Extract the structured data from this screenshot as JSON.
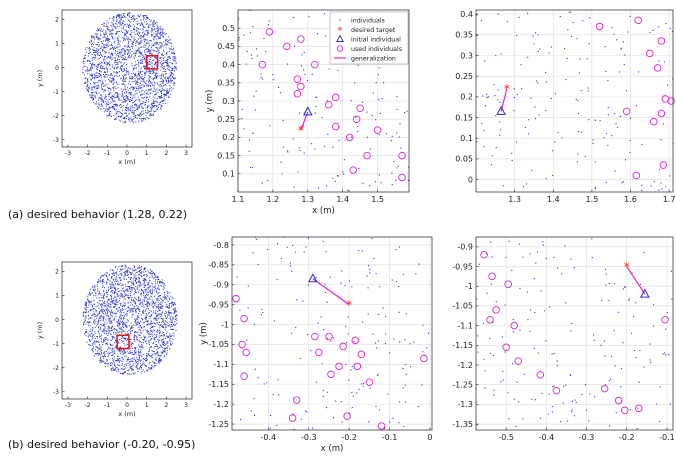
{
  "captions": {
    "row_a": "(a) desired behavior (1.28, 0.22)",
    "row_b": "(b) desired behavior (-0.20, -0.95)"
  },
  "legend": {
    "individuals": "individuals",
    "desired_target": "desired target",
    "initial_individual": "initial individual",
    "used_individuals": "used individuals",
    "generalization": "generalization"
  },
  "colors": {
    "individuals": "#2a32c8",
    "target": "#ff2020",
    "initial": "#2a2acc",
    "used": "#e020d8",
    "generalization": "#e020d8",
    "highlight_box": "#e01818",
    "grid": "#dcdcdc"
  },
  "chart_data": [
    {
      "type": "scatter",
      "panel": "a-overview",
      "xlabel": "x (m)",
      "ylabel": "y (m)",
      "xlim": [
        -3.3,
        3.3
      ],
      "ylim": [
        -3.3,
        2.4
      ],
      "xticks": [
        -3,
        -2,
        -1,
        0,
        1,
        2,
        3
      ],
      "yticks": [
        -3,
        -2,
        -1,
        0,
        1,
        2
      ],
      "grid": false,
      "cloud": {
        "center": [
          0.15,
          0.0
        ],
        "radii": [
          2.4,
          2.3
        ],
        "count": 2200
      },
      "box": [
        1.0,
        -0.05,
        1.55,
        0.5
      ]
    },
    {
      "type": "scatter",
      "panel": "a-zoom-left",
      "xlabel": "x (m)",
      "ylabel": "y (m)",
      "xlim": [
        1.1,
        1.59
      ],
      "ylim": [
        0.05,
        0.55
      ],
      "xticks": [
        1.1,
        1.2,
        1.3,
        1.4,
        1.5
      ],
      "yticks": [
        0.1,
        0.15,
        0.2,
        0.25,
        0.3,
        0.35,
        0.4,
        0.45,
        0.5
      ],
      "grid": true,
      "legend_placement": "top-right",
      "target": [
        1.28,
        0.22
      ],
      "initial": [
        1.3,
        0.27
      ],
      "used": [
        [
          1.19,
          0.49
        ],
        [
          1.28,
          0.47
        ],
        [
          1.24,
          0.45
        ],
        [
          1.17,
          0.4
        ],
        [
          1.32,
          0.4
        ],
        [
          1.27,
          0.36
        ],
        [
          1.28,
          0.34
        ],
        [
          1.27,
          0.32
        ],
        [
          1.38,
          0.31
        ],
        [
          1.36,
          0.29
        ],
        [
          1.45,
          0.28
        ],
        [
          1.44,
          0.25
        ],
        [
          1.38,
          0.23
        ],
        [
          1.42,
          0.2
        ],
        [
          1.5,
          0.22
        ],
        [
          1.47,
          0.15
        ],
        [
          1.57,
          0.15
        ],
        [
          1.43,
          0.11
        ],
        [
          1.57,
          0.09
        ]
      ]
    },
    {
      "type": "scatter",
      "panel": "a-zoom-right",
      "xlabel": "",
      "ylabel": "",
      "xlim": [
        1.2,
        1.71
      ],
      "ylim": [
        -0.03,
        0.41
      ],
      "xticks": [
        1.3,
        1.4,
        1.5,
        1.6,
        1.7
      ],
      "yticks": [
        0,
        0.05,
        0.1,
        0.15,
        0.2,
        0.25,
        0.3,
        0.35,
        0.4
      ],
      "grid": true,
      "target": [
        1.28,
        0.22
      ],
      "initial": [
        1.265,
        0.165
      ],
      "used": [
        [
          1.52,
          0.37
        ],
        [
          1.62,
          0.385
        ],
        [
          1.68,
          0.335
        ],
        [
          1.65,
          0.305
        ],
        [
          1.67,
          0.27
        ],
        [
          1.59,
          0.165
        ],
        [
          1.69,
          0.195
        ],
        [
          1.705,
          0.19
        ],
        [
          1.68,
          0.16
        ],
        [
          1.66,
          0.14
        ],
        [
          1.685,
          0.035
        ],
        [
          1.615,
          0.01
        ]
      ]
    },
    {
      "type": "scatter",
      "panel": "b-overview",
      "xlabel": "x (m)",
      "ylabel": "y (m)",
      "xlim": [
        -3.3,
        3.3
      ],
      "ylim": [
        -3.3,
        2.4
      ],
      "xticks": [
        -3,
        -2,
        -1,
        0,
        1,
        2,
        3
      ],
      "yticks": [
        -3,
        -2,
        -1,
        0,
        1,
        2
      ],
      "grid": false,
      "cloud": {
        "center": [
          0.15,
          0.0
        ],
        "radii": [
          2.4,
          2.3
        ],
        "count": 2200
      },
      "box": [
        -0.5,
        -1.2,
        0.1,
        -0.65
      ]
    },
    {
      "type": "scatter",
      "panel": "b-zoom-left",
      "xlabel": "x (m)",
      "ylabel": "y (m)",
      "xlim": [
        -0.49,
        0.005
      ],
      "ylim": [
        -1.265,
        -0.78
      ],
      "xticks": [
        -0.4,
        -0.3,
        -0.2,
        -0.1,
        0
      ],
      "yticks": [
        -0.8,
        -0.85,
        -0.9,
        -0.95,
        -1,
        -1.05,
        -1.1,
        -1.15,
        -1.2,
        -1.25
      ],
      "grid": true,
      "target": [
        -0.2,
        -0.95
      ],
      "initial": [
        -0.29,
        -0.885
      ],
      "used": [
        [
          -0.48,
          -0.935
        ],
        [
          -0.46,
          -0.985
        ],
        [
          -0.465,
          -1.05
        ],
        [
          -0.455,
          -1.07
        ],
        [
          -0.46,
          -1.13
        ],
        [
          -0.285,
          -1.03
        ],
        [
          -0.25,
          -1.03
        ],
        [
          -0.275,
          -1.07
        ],
        [
          -0.215,
          -1.055
        ],
        [
          -0.185,
          -1.04
        ],
        [
          -0.17,
          -1.075
        ],
        [
          -0.225,
          -1.105
        ],
        [
          -0.245,
          -1.125
        ],
        [
          -0.18,
          -1.105
        ],
        [
          -0.15,
          -1.145
        ],
        [
          -0.33,
          -1.19
        ],
        [
          -0.34,
          -1.235
        ],
        [
          -0.205,
          -1.23
        ],
        [
          -0.12,
          -1.255
        ],
        [
          -0.015,
          -1.085
        ]
      ]
    },
    {
      "type": "scatter",
      "panel": "b-zoom-right",
      "xlabel": "",
      "ylabel": "",
      "xlim": [
        -0.575,
        -0.085
      ],
      "ylim": [
        -1.365,
        -0.875
      ],
      "xticks": [
        -0.5,
        -0.4,
        -0.3,
        -0.2,
        -0.1
      ],
      "yticks": [
        -0.9,
        -0.95,
        -1,
        -1.05,
        -1.1,
        -1.15,
        -1.2,
        -1.25,
        -1.3,
        -1.35
      ],
      "grid": true,
      "target": [
        -0.2,
        -0.95
      ],
      "initial": [
        -0.155,
        -1.02
      ],
      "used": [
        [
          -0.555,
          -0.92
        ],
        [
          -0.535,
          -0.975
        ],
        [
          -0.495,
          -0.995
        ],
        [
          -0.525,
          -1.06
        ],
        [
          -0.54,
          -1.085
        ],
        [
          -0.48,
          -1.1
        ],
        [
          -0.5,
          -1.155
        ],
        [
          -0.47,
          -1.19
        ],
        [
          -0.375,
          -1.265
        ],
        [
          -0.415,
          -1.225
        ],
        [
          -0.255,
          -1.26
        ],
        [
          -0.22,
          -1.29
        ],
        [
          -0.205,
          -1.315
        ],
        [
          -0.17,
          -1.31
        ],
        [
          -0.105,
          -1.085
        ]
      ]
    }
  ]
}
